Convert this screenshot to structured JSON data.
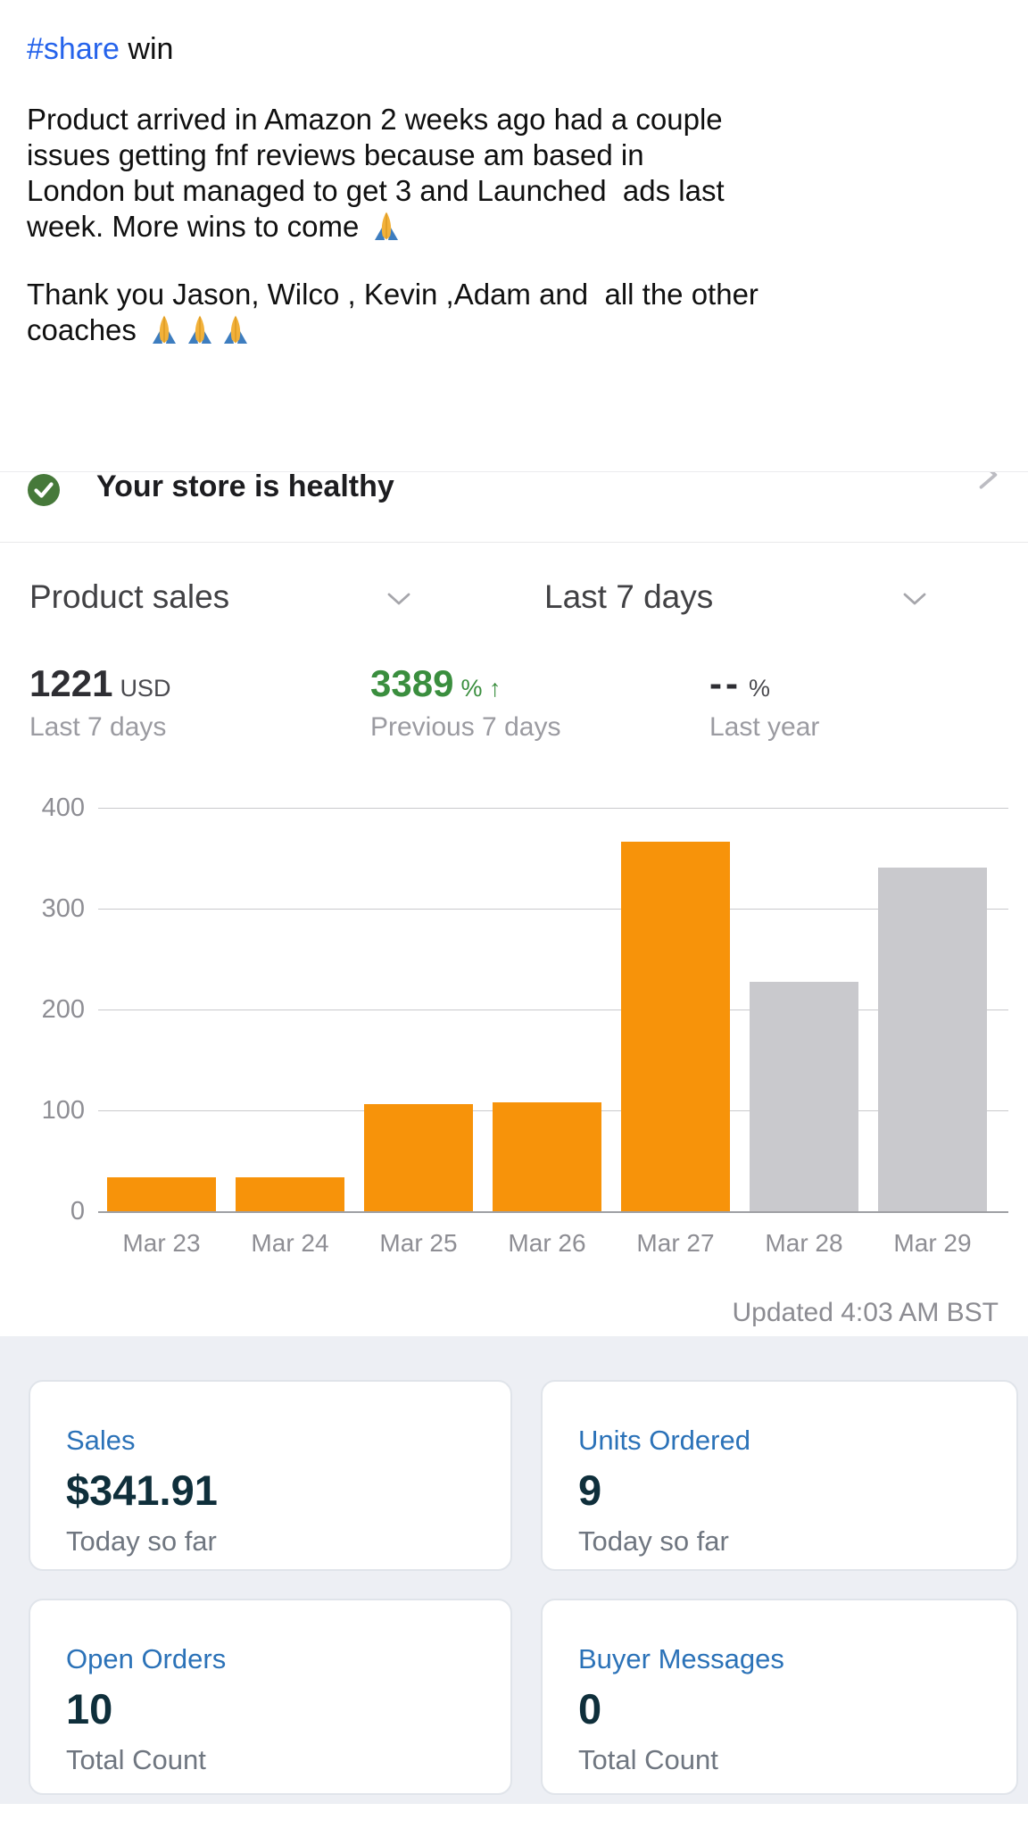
{
  "post": {
    "hashtag": "#share",
    "title_rest": " win",
    "paragraph1": "Product arrived in Amazon 2 weeks ago had a couple\nissues getting fnf reviews because am based in\nLondon but managed to get 3 and Launched  ads last\nweek. More wins to come ",
    "paragraph1_emoji": "🙏",
    "paragraph2_line1": "Thank you Jason, Wilco , Kevin ,Adam and  all the other",
    "paragraph2_line2": "coaches ",
    "paragraph2_emoji": "🙏🙏🙏"
  },
  "store_banner": {
    "label": "Your store is healthy",
    "status_icon": "green-check-icon",
    "chevron_icon": "chevron-right-icon"
  },
  "sales_widget": {
    "metric_selector": "Product sales",
    "range_selector": "Last 7 days",
    "stats": [
      {
        "value": "1221",
        "unit": "USD",
        "caption": "Last 7 days"
      },
      {
        "value": "3389",
        "unit": "% ↑",
        "caption": "Previous 7 days"
      },
      {
        "value": "--",
        "unit": "%",
        "caption": "Last year"
      }
    ],
    "updated": "Updated 4:03 AM BST"
  },
  "chart_data": {
    "type": "bar",
    "title": "Product sales — Last 7 days",
    "categories": [
      "Mar 23",
      "Mar 24",
      "Mar 25",
      "Mar 26",
      "Mar 27",
      "Mar 28",
      "Mar 29"
    ],
    "values": [
      34,
      34,
      106,
      108,
      366,
      227,
      341
    ],
    "bar_colors": [
      "#f7930a",
      "#f7930a",
      "#f7930a",
      "#f7930a",
      "#f7930a",
      "#c9c9cd",
      "#c9c9cd"
    ],
    "yticks": [
      0,
      100,
      200,
      300,
      400
    ],
    "ylim": [
      0,
      400
    ],
    "xlabel": "",
    "ylabel": "",
    "grid": true,
    "legend": "none",
    "orange_hex": "#f7930a",
    "gray_hex": "#c9c9cd"
  },
  "summary_cards": [
    {
      "label": "Sales",
      "value": "$341.91",
      "caption": "Today so far"
    },
    {
      "label": "Units Ordered",
      "value": "9",
      "caption": "Today so far"
    },
    {
      "label": "Open Orders",
      "value": "10",
      "caption": "Total Count"
    },
    {
      "label": "Buyer Messages",
      "value": "0",
      "caption": "Total Count"
    }
  ],
  "colors": {
    "link_blue": "#2563eb",
    "banner_green": "#46793a",
    "stat_green": "#3a8e3e",
    "bar_orange": "#f7930a",
    "bar_gray": "#c9c9cd",
    "card_label_blue": "#2b72b8",
    "card_value_ink": "#0f2f3b",
    "section_bg": "#edeff4"
  }
}
